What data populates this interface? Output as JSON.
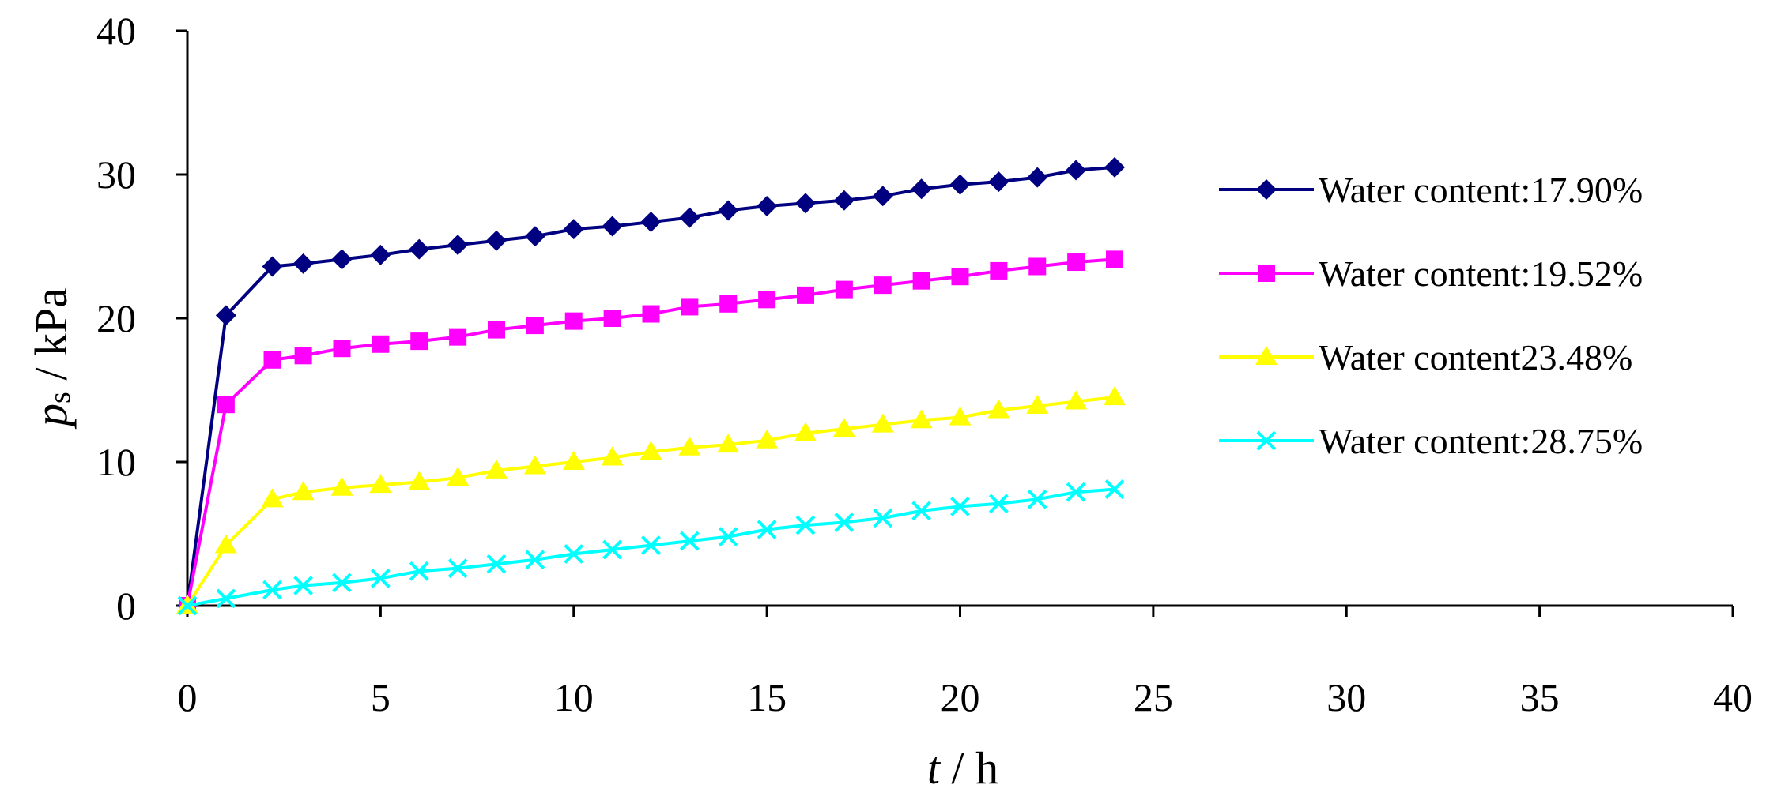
{
  "chart_data": {
    "type": "line",
    "title": "",
    "xlabel": {
      "var": "t",
      "unit": " / h"
    },
    "ylabel": {
      "var": "p",
      "sub": "s",
      "unit": " / kPa"
    },
    "xlim": [
      0,
      40
    ],
    "ylim": [
      0,
      40
    ],
    "xticks": [
      "0",
      "5",
      "10",
      "15",
      "20",
      "25",
      "30",
      "35",
      "40"
    ],
    "yticks": [
      "0",
      "10",
      "20",
      "30",
      "40"
    ],
    "grid": false,
    "legend_position": "right",
    "x": [
      0,
      1,
      2.2,
      3,
      4,
      5,
      6,
      7,
      8,
      9,
      10,
      11,
      12,
      13,
      14,
      15,
      16,
      17,
      18,
      19,
      20,
      21,
      22,
      23,
      24
    ],
    "series": [
      {
        "name": "Water content:17.90%",
        "color": "#000080",
        "marker": "diamond",
        "values": [
          0,
          20.2,
          23.6,
          23.8,
          24.1,
          24.4,
          24.8,
          25.1,
          25.4,
          25.7,
          26.2,
          26.4,
          26.7,
          27.0,
          27.5,
          27.8,
          28.0,
          28.2,
          28.5,
          29.0,
          29.3,
          29.5,
          29.8,
          30.3,
          30.5
        ]
      },
      {
        "name": "Water content:19.52%",
        "color": "#FF00FF",
        "marker": "square",
        "values": [
          0,
          14.0,
          17.1,
          17.4,
          17.9,
          18.2,
          18.4,
          18.7,
          19.2,
          19.5,
          19.8,
          20.0,
          20.3,
          20.8,
          21.0,
          21.3,
          21.6,
          22.0,
          22.3,
          22.6,
          22.9,
          23.3,
          23.6,
          23.9,
          24.1
        ]
      },
      {
        "name": "Water content23.48%",
        "color": "#FFFF00",
        "marker": "triangle",
        "values": [
          0,
          4.2,
          7.4,
          7.9,
          8.2,
          8.4,
          8.6,
          8.9,
          9.4,
          9.7,
          10.0,
          10.3,
          10.7,
          11.0,
          11.2,
          11.5,
          12.0,
          12.3,
          12.6,
          12.9,
          13.1,
          13.6,
          13.9,
          14.2,
          14.5
        ]
      },
      {
        "name": "Water content:28.75%",
        "color": "#00FFFF",
        "marker": "x",
        "values": [
          0,
          0.5,
          1.1,
          1.4,
          1.6,
          1.9,
          2.4,
          2.6,
          2.9,
          3.2,
          3.6,
          3.9,
          4.2,
          4.5,
          4.8,
          5.3,
          5.6,
          5.8,
          6.1,
          6.6,
          6.9,
          7.1,
          7.4,
          7.9,
          8.1
        ]
      }
    ]
  }
}
